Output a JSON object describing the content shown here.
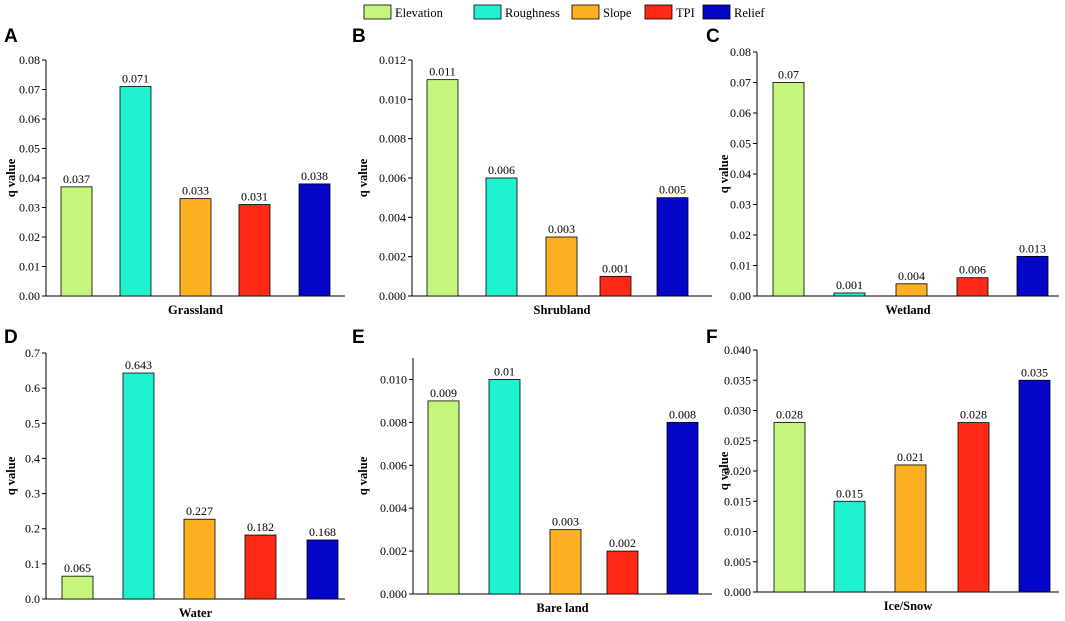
{
  "legend": [
    {
      "name": "Elevation",
      "color": "#c5f57a"
    },
    {
      "name": "Roughness",
      "color": "#1ef2cf"
    },
    {
      "name": "Slope",
      "color": "#fdb021"
    },
    {
      "name": "TPI",
      "color": "#ff2a15"
    },
    {
      "name": "Relief",
      "color": "#0606c8"
    }
  ],
  "chart_data": [
    {
      "type": "bar",
      "letter": "A",
      "xlabel": "Grassland",
      "ylabel": "q value",
      "categories": [
        "Elevation",
        "Roughness",
        "Slope",
        "TPI",
        "Relief"
      ],
      "values": [
        0.037,
        0.071,
        0.033,
        0.031,
        0.038
      ],
      "labels": [
        "0.037",
        "0.071",
        "0.033",
        "0.031",
        "0.038"
      ],
      "ylim": [
        0,
        0.08
      ],
      "ticks": [
        "0.00",
        "0.01",
        "0.02",
        "0.03",
        "0.04",
        "0.05",
        "0.06",
        "0.07",
        "0.08"
      ]
    },
    {
      "type": "bar",
      "letter": "B",
      "xlabel": "Shrubland",
      "ylabel": "q value",
      "categories": [
        "Elevation",
        "Roughness",
        "Slope",
        "TPI",
        "Relief"
      ],
      "values": [
        0.011,
        0.006,
        0.003,
        0.001,
        0.005
      ],
      "labels": [
        "0.011",
        "0.006",
        "0.003",
        "0.001",
        "0.005"
      ],
      "ylim": [
        0,
        0.012
      ],
      "ticks": [
        "0.000",
        "0.002",
        "0.004",
        "0.006",
        "0.008",
        "0.010",
        "0.012"
      ]
    },
    {
      "type": "bar",
      "letter": "C",
      "xlabel": "Wetland",
      "ylabel": "q value",
      "categories": [
        "Elevation",
        "Roughness",
        "Slope",
        "TPI",
        "Relief"
      ],
      "values": [
        0.07,
        0.001,
        0.004,
        0.006,
        0.013
      ],
      "labels": [
        "0.07",
        "0.001",
        "0.004",
        "0.006",
        "0.013"
      ],
      "ylim": [
        0,
        0.08
      ],
      "ticks": [
        "0.00",
        "0.01",
        "0.02",
        "0.03",
        "0.04",
        "0.05",
        "0.06",
        "0.07",
        "0.08"
      ]
    },
    {
      "type": "bar",
      "letter": "D",
      "xlabel": "Water",
      "ylabel": "q value",
      "categories": [
        "Elevation",
        "Roughness",
        "Slope",
        "TPI",
        "Relief"
      ],
      "values": [
        0.065,
        0.643,
        0.227,
        0.182,
        0.168
      ],
      "labels": [
        "0.065",
        "0.643",
        "0.227",
        "0.182",
        "0.168"
      ],
      "ylim": [
        0,
        0.7
      ],
      "ticks": [
        "0.0",
        "0.1",
        "0.2",
        "0.3",
        "0.4",
        "0.5",
        "0.6",
        "0.7"
      ]
    },
    {
      "type": "bar",
      "letter": "E",
      "xlabel": "Bare land",
      "ylabel": "q value",
      "categories": [
        "Elevation",
        "Roughness",
        "Slope",
        "TPI",
        "Relief"
      ],
      "values": [
        0.009,
        0.01,
        0.003,
        0.002,
        0.008
      ],
      "labels": [
        "0.009",
        "0.01",
        "0.003",
        "0.002",
        "0.008"
      ],
      "ylim": [
        0,
        0.011
      ],
      "ticks": [
        "0.000",
        "0.002",
        "0.004",
        "0.006",
        "0.008",
        "0.010"
      ]
    },
    {
      "type": "bar",
      "letter": "F",
      "xlabel": "Ice/Snow",
      "ylabel": "q value",
      "categories": [
        "Elevation",
        "Roughness",
        "Slope",
        "TPI",
        "Relief"
      ],
      "values": [
        0.028,
        0.015,
        0.021,
        0.028,
        0.035
      ],
      "labels": [
        "0.028",
        "0.015",
        "0.021",
        "0.028",
        "0.035"
      ],
      "ylim": [
        0,
        0.04
      ],
      "ticks": [
        "0.000",
        "0.005",
        "0.010",
        "0.015",
        "0.020",
        "0.025",
        "0.030",
        "0.035",
        "0.040"
      ]
    }
  ]
}
